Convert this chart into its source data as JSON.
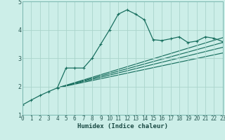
{
  "xlabel": "Humidex (Indice chaleur)",
  "bg_color": "#cceee8",
  "grid_color": "#aad4cc",
  "line_color": "#1a7060",
  "xlim": [
    0,
    23
  ],
  "ylim": [
    1,
    5
  ],
  "yticks": [
    1,
    2,
    3,
    4,
    5
  ],
  "xticks": [
    0,
    1,
    2,
    3,
    4,
    5,
    6,
    7,
    8,
    9,
    10,
    11,
    12,
    13,
    14,
    15,
    16,
    17,
    18,
    19,
    20,
    21,
    22,
    23
  ],
  "curve1_x": [
    0,
    1,
    2,
    3,
    4,
    5,
    6,
    7,
    8,
    9,
    10,
    11,
    12,
    13,
    14,
    15,
    16,
    17,
    18,
    19,
    20,
    21,
    22,
    23
  ],
  "curve1_y": [
    1.35,
    1.52,
    1.68,
    1.82,
    1.95,
    2.65,
    2.65,
    2.65,
    3.0,
    3.5,
    4.0,
    4.55,
    4.7,
    4.55,
    4.35,
    3.65,
    3.62,
    3.68,
    3.75,
    3.55,
    3.6,
    3.75,
    3.7,
    3.58
  ],
  "line2_x": [
    4,
    23
  ],
  "line2_y": [
    1.95,
    3.72
  ],
  "line3_x": [
    4,
    23
  ],
  "line3_y": [
    1.95,
    3.55
  ],
  "line4_x": [
    4,
    23
  ],
  "line4_y": [
    1.95,
    3.38
  ],
  "line5_x": [
    4,
    23
  ],
  "line5_y": [
    1.95,
    3.18
  ]
}
